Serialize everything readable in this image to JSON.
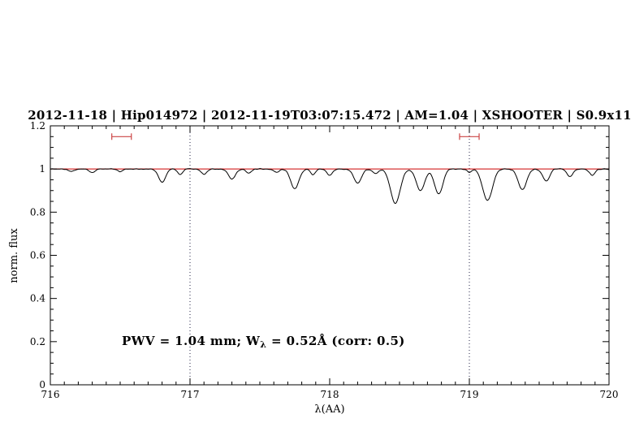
{
  "header": {
    "title": "2012-11-18 | Hip014972 | 2012-11-19T03:07:15.472 | AM=1.04 | XSHOOTER | S0.9x11"
  },
  "chart_data": {
    "type": "line",
    "title": "2012-11-18 | Hip014972 | 2012-11-19T03:07:15.472 | AM=1.04 | XSHOOTER | S0.9x11",
    "xlabel": "λ(AA)",
    "ylabel": "norm. flux",
    "xlim": [
      716,
      720
    ],
    "ylim": [
      0,
      1.2
    ],
    "x_ticks": [
      {
        "value": 716,
        "label": "716"
      },
      {
        "value": 717,
        "label": "717"
      },
      {
        "value": 718,
        "label": "718"
      },
      {
        "value": 719,
        "label": "719"
      },
      {
        "value": 720,
        "label": "720"
      }
    ],
    "y_ticks": [
      {
        "value": 0,
        "label": "0"
      },
      {
        "value": 0.2,
        "label": "0.2"
      },
      {
        "value": 0.4,
        "label": "0.4"
      },
      {
        "value": 0.6,
        "label": "0.6"
      },
      {
        "value": 0.8,
        "label": "0.8"
      },
      {
        "value": 1,
        "label": "1"
      },
      {
        "value": 1.2,
        "label": "1.2"
      }
    ],
    "minor_tick_step_x": 0.1,
    "minor_tick_step_y": 0.05,
    "grid": false,
    "legend": "none",
    "continuum_y": 1.0,
    "vlines": [
      717,
      719
    ],
    "markers": [
      {
        "x1": 716.44,
        "x2": 716.58,
        "y": 1.15
      },
      {
        "x1": 718.93,
        "x2": 719.07,
        "y": 1.15
      }
    ],
    "annotation": {
      "part1": "PWV = 1.04 mm; W",
      "sub": "λ",
      "part2": " = 0.52Å (corr: 0.5)",
      "x": 716.5,
      "y": 0.2
    },
    "series": [
      {
        "name": "observed_spectrum",
        "model": "continuum_minus_gaussians",
        "continuum": 1.0,
        "absorption_lines": [
          [
            716.15,
            0.012,
            0.02
          ],
          [
            716.3,
            0.015,
            0.02
          ],
          [
            716.5,
            0.012,
            0.02
          ],
          [
            716.8,
            0.06,
            0.025
          ],
          [
            716.93,
            0.025,
            0.018
          ],
          [
            717.1,
            0.025,
            0.02
          ],
          [
            717.3,
            0.045,
            0.025
          ],
          [
            717.42,
            0.02,
            0.018
          ],
          [
            717.62,
            0.015,
            0.02
          ],
          [
            717.75,
            0.09,
            0.03
          ],
          [
            717.88,
            0.025,
            0.018
          ],
          [
            718.0,
            0.03,
            0.02
          ],
          [
            718.2,
            0.065,
            0.028
          ],
          [
            718.33,
            0.02,
            0.02
          ],
          [
            718.47,
            0.16,
            0.035
          ],
          [
            718.65,
            0.1,
            0.03
          ],
          [
            718.78,
            0.115,
            0.03
          ],
          [
            719.0,
            0.015,
            0.015
          ],
          [
            719.13,
            0.145,
            0.035
          ],
          [
            719.38,
            0.095,
            0.03
          ],
          [
            719.55,
            0.055,
            0.025
          ],
          [
            719.72,
            0.035,
            0.022
          ],
          [
            719.88,
            0.03,
            0.02
          ]
        ],
        "noise_amplitude": 0.0035,
        "samples": 700
      }
    ],
    "colors": {
      "title_color": "#0000cd",
      "annotation_color": "#0000cd",
      "spectrum": "#000000",
      "continuum": "#cc0000",
      "marker": "#cc4444",
      "vline": "#222244",
      "axis": "#000000"
    }
  }
}
